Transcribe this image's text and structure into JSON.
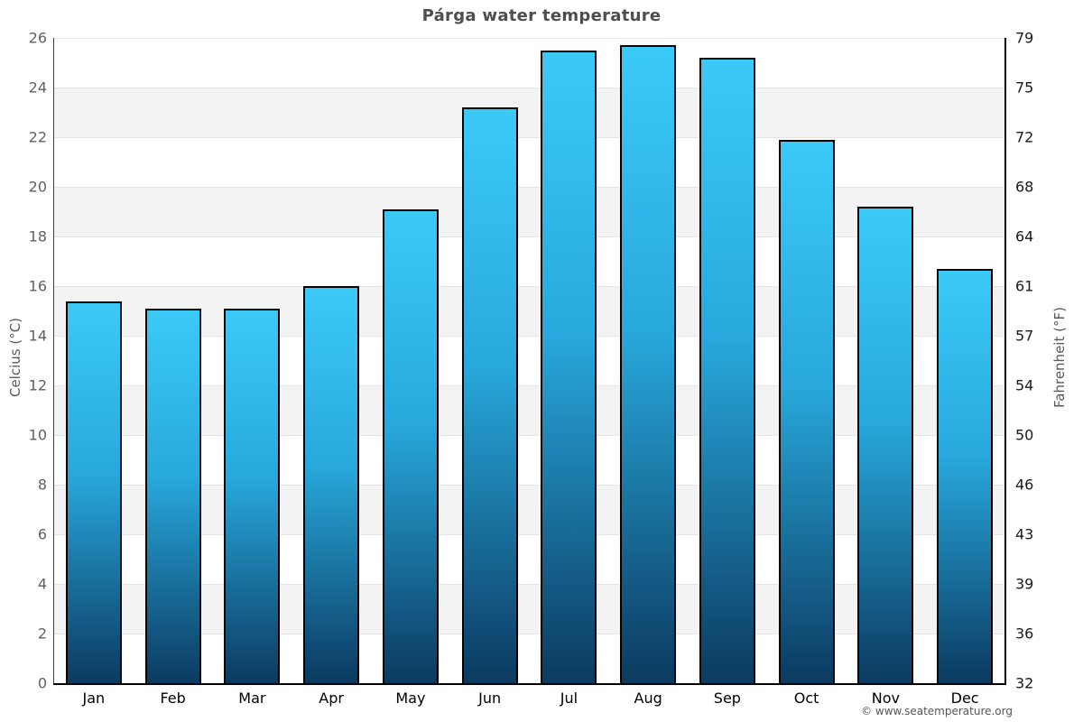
{
  "title": "Párga water temperature",
  "axes": {
    "left_label": "Celcius (°C)",
    "right_label": "Fahrenheit (°F)"
  },
  "copyright": "© www.seatemperature.org",
  "chart_data": {
    "type": "bar",
    "title": "Párga water temperature",
    "categories": [
      "Jan",
      "Feb",
      "Mar",
      "Apr",
      "May",
      "Jun",
      "Jul",
      "Aug",
      "Sep",
      "Oct",
      "Nov",
      "Dec"
    ],
    "values": [
      15.4,
      15.1,
      15.1,
      16.0,
      19.1,
      23.2,
      25.5,
      25.7,
      25.2,
      21.9,
      19.2,
      16.7
    ],
    "xlabel": "",
    "ylabel": "Celcius (°C)",
    "ylabel_right": "Fahrenheit (°F)",
    "ylim": [
      0,
      26
    ],
    "y_ticks_celsius": [
      0,
      2,
      4,
      6,
      8,
      10,
      12,
      14,
      16,
      18,
      20,
      22,
      24,
      26
    ],
    "y_ticks_fahrenheit": [
      32,
      36,
      39,
      43,
      46,
      50,
      54,
      57,
      61,
      64,
      68,
      72,
      75,
      79
    ],
    "grid": "horizontal-bands-alternating",
    "legend": "none",
    "colors": {
      "bar_gradient_top": "#3BCAF8",
      "bar_gradient_mid": "#28A8DC",
      "bar_gradient_bottom": "#0B3A60",
      "bar_border": "#000000",
      "band_gray": "#f3f3f3",
      "band_white": "#ffffff",
      "gridline": "#e4e4e4",
      "title_color": "#4d4d4d",
      "left_tick_color": "#606060",
      "right_tick_color": "#1a1a1a",
      "month_label_color": "#000000"
    }
  }
}
